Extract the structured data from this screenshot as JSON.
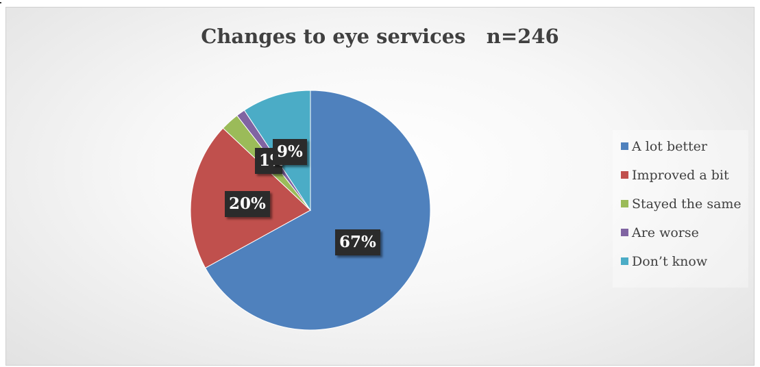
{
  "chart_data": {
    "type": "pie",
    "title": "Changes to eye services   n=246",
    "legend_position": "right",
    "slices": [
      {
        "name": "A lot better",
        "value": 67,
        "label": "67%",
        "color": "#4f81bd"
      },
      {
        "name": "Improved a bit",
        "value": 20,
        "label": "20%",
        "color": "#c0504d"
      },
      {
        "name": "Stayed the same",
        "value": 2.5,
        "label": "",
        "color": "#9bbb59"
      },
      {
        "name": "Are worse",
        "value": 1.2,
        "label": "1%",
        "color": "#8064a2"
      },
      {
        "name": "Don’t know",
        "value": 9.3,
        "label": "9%",
        "color": "#4bacc6"
      }
    ]
  }
}
